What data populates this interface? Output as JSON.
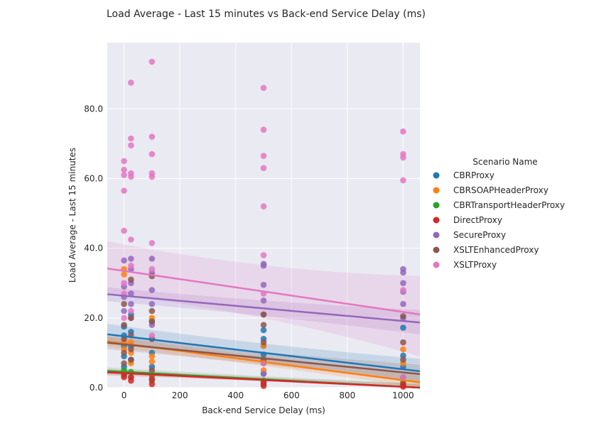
{
  "chart_data": {
    "type": "scatter",
    "title": "Load Average - Last 15 minutes vs Back-end Service Delay (ms)",
    "xlabel": "Back-end Service Delay (ms)",
    "ylabel": "Load Average - Last 15 minutes",
    "xlim": [
      -60,
      1060
    ],
    "ylim": [
      0,
      99
    ],
    "xticks": [
      {
        "value": 0,
        "label": "0"
      },
      {
        "value": 200,
        "label": "200"
      },
      {
        "value": 400,
        "label": "400"
      },
      {
        "value": 600,
        "label": "600"
      },
      {
        "value": 800,
        "label": "800"
      },
      {
        "value": 1000,
        "label": "1000"
      }
    ],
    "yticks": [
      {
        "value": 0,
        "label": "0.0"
      },
      {
        "value": 20,
        "label": "20.0"
      },
      {
        "value": 40,
        "label": "40.0"
      },
      {
        "value": 60,
        "label": "60.0"
      },
      {
        "value": 80,
        "label": "80.0"
      }
    ],
    "grid": true,
    "legend": {
      "title": "Scenario Name",
      "position": "right"
    },
    "series": [
      {
        "name": "CBRProxy",
        "color": "#1f77b4",
        "fit": {
          "x": [
            -60,
            1060
          ],
          "y": [
            15.3,
            4.7
          ]
        },
        "band": {
          "upper": [
            18.3,
            8.3
          ],
          "lower": [
            12.5,
            1.6
          ]
        },
        "points": [
          [
            0,
            17.5
          ],
          [
            0,
            15
          ],
          [
            0,
            12
          ],
          [
            0,
            9
          ],
          [
            0,
            6
          ],
          [
            25,
            21
          ],
          [
            25,
            16
          ],
          [
            25,
            12
          ],
          [
            25,
            8
          ],
          [
            100,
            19
          ],
          [
            100,
            14
          ],
          [
            100,
            10
          ],
          [
            100,
            6
          ],
          [
            500,
            16.5
          ],
          [
            500,
            14
          ],
          [
            500,
            12
          ],
          [
            500,
            9.5
          ],
          [
            500,
            7
          ],
          [
            500,
            4
          ],
          [
            1000,
            17.2
          ],
          [
            1000,
            9.2
          ],
          [
            1000,
            6
          ],
          [
            1000,
            3
          ]
        ]
      },
      {
        "name": "CBRSOAPHeaderProxy",
        "color": "#ff7f0e",
        "fit": {
          "x": [
            -60,
            1060
          ],
          "y": [
            13.3,
            1.5
          ]
        },
        "band": {
          "upper": [
            14.8,
            3.8
          ],
          "lower": [
            11.8,
            0
          ]
        },
        "points": [
          [
            0,
            34
          ],
          [
            0,
            32.5
          ],
          [
            0,
            13
          ],
          [
            0,
            11
          ],
          [
            25,
            13
          ],
          [
            25,
            10
          ],
          [
            25,
            7
          ],
          [
            100,
            9
          ],
          [
            100,
            7.5
          ],
          [
            100,
            20
          ],
          [
            500,
            12
          ],
          [
            500,
            8
          ],
          [
            500,
            5
          ],
          [
            1000,
            11
          ],
          [
            1000,
            7
          ]
        ]
      },
      {
        "name": "CBRTransportHeaderProxy",
        "color": "#2ca02c",
        "fit": {
          "x": [
            -60,
            1060
          ],
          "y": [
            4.8,
            0
          ]
        },
        "band": {
          "upper": [
            5.8,
            1.2
          ],
          "lower": [
            3.8,
            0
          ]
        },
        "points": [
          [
            0,
            5
          ],
          [
            0,
            3.5
          ],
          [
            25,
            4.5
          ],
          [
            25,
            3
          ],
          [
            100,
            3.5
          ],
          [
            100,
            2
          ],
          [
            500,
            2
          ],
          [
            500,
            1
          ],
          [
            1000,
            1.5
          ],
          [
            1000,
            0.5
          ]
        ]
      },
      {
        "name": "DirectProxy",
        "color": "#d62728",
        "fit": {
          "x": [
            -60,
            1060
          ],
          "y": [
            4.4,
            0
          ]
        },
        "band": {
          "upper": [
            5.3,
            1
          ],
          "lower": [
            3.5,
            0
          ]
        },
        "points": [
          [
            0,
            4
          ],
          [
            0,
            3
          ],
          [
            25,
            3
          ],
          [
            25,
            2
          ],
          [
            100,
            2.5
          ],
          [
            100,
            1
          ],
          [
            500,
            1.5
          ],
          [
            500,
            0.5
          ],
          [
            1000,
            1
          ],
          [
            1000,
            0.3
          ]
        ]
      },
      {
        "name": "SecureProxy",
        "color": "#9467bd",
        "fit": {
          "x": [
            -60,
            1060
          ],
          "y": [
            26.8,
            18.7
          ]
        },
        "band": {
          "upper": [
            28.8,
            22.3
          ],
          "lower": [
            24.8,
            15.3
          ]
        },
        "points": [
          [
            0,
            36.5
          ],
          [
            0,
            29
          ],
          [
            0,
            26
          ],
          [
            0,
            22
          ],
          [
            25,
            37
          ],
          [
            25,
            34
          ],
          [
            25,
            30
          ],
          [
            25,
            27
          ],
          [
            25,
            24
          ],
          [
            25,
            20
          ],
          [
            100,
            37
          ],
          [
            100,
            33
          ],
          [
            100,
            28
          ],
          [
            100,
            24
          ],
          [
            100,
            18
          ],
          [
            500,
            35.5
          ],
          [
            500,
            35
          ],
          [
            500,
            29.5
          ],
          [
            500,
            25
          ],
          [
            500,
            21
          ],
          [
            500,
            4
          ],
          [
            1000,
            34
          ],
          [
            1000,
            33
          ],
          [
            1000,
            30
          ],
          [
            1000,
            27.5
          ],
          [
            1000,
            24
          ],
          [
            1000,
            20
          ]
        ]
      },
      {
        "name": "XSLTEnhancedProxy",
        "color": "#8c564b",
        "fit": {
          "x": [
            -60,
            1060
          ],
          "y": [
            12.9,
            3.9
          ]
        },
        "band": {
          "upper": [
            14.8,
            6.6
          ],
          "lower": [
            11.0,
            1.4
          ]
        },
        "points": [
          [
            0,
            24
          ],
          [
            0,
            18
          ],
          [
            0,
            14
          ],
          [
            0,
            10
          ],
          [
            0,
            7
          ],
          [
            25,
            31
          ],
          [
            25,
            20
          ],
          [
            25,
            15
          ],
          [
            25,
            11
          ],
          [
            25,
            8
          ],
          [
            100,
            32
          ],
          [
            100,
            22
          ],
          [
            100,
            19
          ],
          [
            100,
            14
          ],
          [
            100,
            5
          ],
          [
            500,
            21
          ],
          [
            500,
            18
          ],
          [
            500,
            13
          ],
          [
            500,
            8
          ],
          [
            1000,
            20.5
          ],
          [
            1000,
            13
          ],
          [
            1000,
            8
          ]
        ]
      },
      {
        "name": "XSLTProxy",
        "color": "#e377c2",
        "fit": {
          "x": [
            -60,
            1060
          ],
          "y": [
            34.2,
            21
          ]
        },
        "band": {
          "upper": [
            42,
            32
          ],
          "lower": [
            27,
            9
          ]
        },
        "points": [
          [
            0,
            65
          ],
          [
            0,
            62.5
          ],
          [
            0,
            61
          ],
          [
            0,
            56.5
          ],
          [
            0,
            45
          ],
          [
            0,
            30
          ],
          [
            0,
            27
          ],
          [
            0,
            20
          ],
          [
            25,
            87.5
          ],
          [
            25,
            71.5
          ],
          [
            25,
            69.5
          ],
          [
            25,
            61.5
          ],
          [
            25,
            60.5
          ],
          [
            25,
            42.5
          ],
          [
            25,
            35
          ],
          [
            25,
            22
          ],
          [
            100,
            93.5
          ],
          [
            100,
            72
          ],
          [
            100,
            67
          ],
          [
            100,
            61.5
          ],
          [
            100,
            60.5
          ],
          [
            100,
            41.5
          ],
          [
            100,
            34
          ],
          [
            100,
            15
          ],
          [
            500,
            86
          ],
          [
            500,
            74
          ],
          [
            500,
            66.5
          ],
          [
            500,
            63
          ],
          [
            500,
            52
          ],
          [
            500,
            38
          ],
          [
            500,
            27
          ],
          [
            500,
            7
          ],
          [
            1000,
            73.5
          ],
          [
            1000,
            67
          ],
          [
            1000,
            66
          ],
          [
            1000,
            59.5
          ],
          [
            1000,
            28
          ],
          [
            1000,
            3
          ]
        ]
      }
    ]
  }
}
